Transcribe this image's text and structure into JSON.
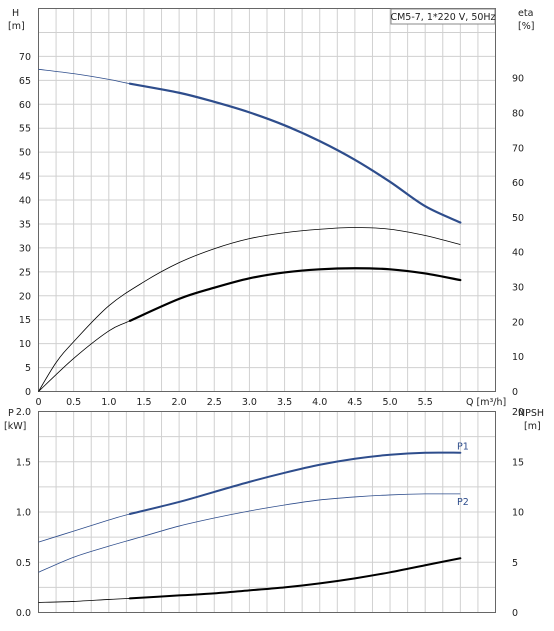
{
  "chart_data": [
    {
      "type": "line",
      "title": "CM5-7, 1*220 V, 50Hz",
      "left_axis": {
        "label": "H",
        "unit": "[m]",
        "ylim": [
          0,
          80
        ],
        "ticks": [
          0,
          5,
          10,
          15,
          20,
          25,
          30,
          35,
          40,
          45,
          50,
          55,
          60,
          65,
          70
        ]
      },
      "right_axis": {
        "label": "eta",
        "unit": "[%]",
        "ylim": [
          0,
          110
        ],
        "ticks": [
          0,
          10,
          20,
          30,
          40,
          50,
          60,
          70,
          80,
          90
        ]
      },
      "x_axis": {
        "label": "Q [m³/h]",
        "xlim": [
          0,
          6.5
        ],
        "ticks": [
          "0",
          "0.5",
          "1.0",
          "1.5",
          "2.0",
          "2.5",
          "3.0",
          "3.5",
          "4.0",
          "4.5",
          "5.0",
          "5.5"
        ],
        "tick_values": [
          0,
          0.5,
          1,
          1.5,
          2,
          2.5,
          3,
          3.5,
          4,
          4.5,
          5,
          5.5
        ]
      },
      "grid": true,
      "series": [
        {
          "axis": "left",
          "color": "#2e4d8c",
          "x": [
            0,
            0.5,
            1.0,
            1.3,
            2.0,
            2.5,
            3.0,
            3.5,
            4.0,
            4.5,
            5.0,
            5.5,
            6.0
          ],
          "y": [
            67.3,
            66.4,
            65.2,
            64.3,
            62.4,
            60.5,
            58.3,
            55.6,
            52.3,
            48.4,
            43.8,
            38.7,
            35.3
          ]
        },
        {
          "axis": "right",
          "color": "#000000",
          "x": [
            0,
            0.25,
            0.5,
            1.0,
            1.5,
            2.0,
            2.5,
            3.0,
            3.5,
            4.0,
            4.5,
            5.0,
            5.5,
            6.0
          ],
          "y": [
            0,
            8.3,
            14.3,
            24.6,
            31.5,
            37.0,
            41.0,
            43.9,
            45.6,
            46.6,
            47.1,
            46.6,
            44.8,
            42.2
          ]
        },
        {
          "axis": "right",
          "color": "#000000",
          "x": [
            0,
            0.5,
            1.0,
            1.3,
            2.0,
            2.5,
            3.0,
            3.5,
            4.0,
            4.5,
            5.0,
            5.5,
            6.0
          ],
          "y": [
            0,
            9.5,
            17.4,
            20.3,
            26.6,
            29.8,
            32.5,
            34.2,
            35.1,
            35.4,
            35.1,
            33.9,
            32.0
          ]
        }
      ]
    },
    {
      "type": "line",
      "left_axis": {
        "label": "P",
        "unit": "[kW]",
        "ylim": [
          0,
          2.0
        ],
        "ticks": [
          "0.0",
          "0.5",
          "1.0",
          "1.5",
          "2.0"
        ],
        "tick_values": [
          0,
          0.5,
          1.0,
          1.5,
          2.0
        ]
      },
      "right_axis": {
        "label": "NPSH",
        "unit": "[m]",
        "ylim": [
          0,
          20
        ],
        "ticks": [
          "0",
          "5",
          "10",
          "15",
          "20"
        ],
        "tick_values": [
          0,
          5,
          10,
          15,
          20
        ]
      },
      "x_axis": {
        "xlim": [
          0,
          6.5
        ]
      },
      "grid": true,
      "series": [
        {
          "name": "P1",
          "axis": "left",
          "color": "#2e4d8c",
          "x": [
            0,
            0.5,
            1.0,
            1.3,
            2.0,
            2.5,
            3.0,
            3.5,
            4.0,
            4.5,
            5.0,
            5.5,
            6.0
          ],
          "y": [
            0.7,
            0.81,
            0.92,
            0.98,
            1.1,
            1.2,
            1.3,
            1.39,
            1.47,
            1.53,
            1.57,
            1.59,
            1.59
          ]
        },
        {
          "name": "P2",
          "axis": "left",
          "color": "#2e4d8c",
          "x": [
            0,
            0.5,
            1.0,
            1.5,
            2.0,
            2.5,
            3.0,
            3.5,
            4.0,
            4.5,
            5.0,
            5.5,
            6.0
          ],
          "y": [
            0.4,
            0.55,
            0.66,
            0.76,
            0.86,
            0.94,
            1.01,
            1.07,
            1.12,
            1.15,
            1.17,
            1.18,
            1.18
          ]
        },
        {
          "axis": "right",
          "color": "#000000",
          "x": [
            0,
            0.5,
            1.0,
            1.3,
            2.0,
            2.5,
            3.0,
            3.5,
            4.0,
            4.5,
            5.0,
            5.5,
            6.0
          ],
          "y": [
            1.0,
            1.1,
            1.3,
            1.4,
            1.7,
            1.9,
            2.2,
            2.5,
            2.9,
            3.4,
            4.0,
            4.7,
            5.4
          ]
        }
      ]
    }
  ]
}
